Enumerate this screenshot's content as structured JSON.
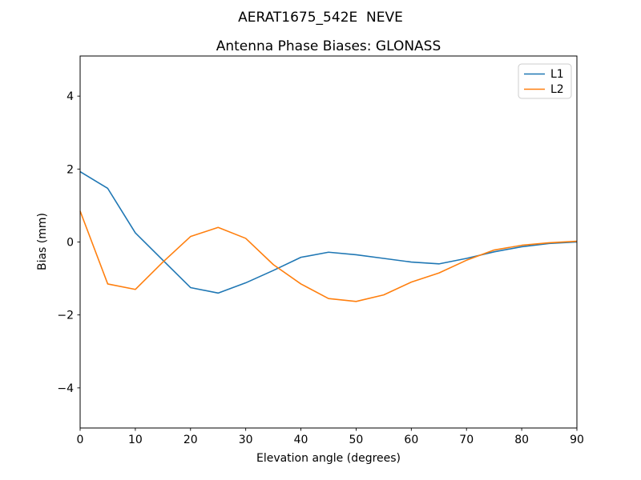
{
  "chart_data": {
    "type": "line",
    "title": "AERAT1675_542E  NEVE",
    "subtitle": "Antenna Phase Biases: GLONASS",
    "xlabel": "Elevation angle (degrees)",
    "ylabel": "Bias (mm)",
    "x": [
      0,
      5,
      10,
      15,
      20,
      25,
      30,
      35,
      40,
      45,
      50,
      55,
      60,
      65,
      70,
      75,
      80,
      85,
      90
    ],
    "series": [
      {
        "name": "L1",
        "color": "#1f77b4",
        "values": [
          1.93,
          1.47,
          0.25,
          -0.5,
          -1.25,
          -1.4,
          -1.12,
          -0.78,
          -0.42,
          -0.28,
          -0.35,
          -0.45,
          -0.55,
          -0.6,
          -0.45,
          -0.27,
          -0.13,
          -0.04,
          0.0
        ]
      },
      {
        "name": "L2",
        "color": "#ff7f0e",
        "values": [
          0.85,
          -1.15,
          -1.3,
          -0.55,
          0.15,
          0.4,
          0.1,
          -0.62,
          -1.15,
          -1.55,
          -1.63,
          -1.45,
          -1.1,
          -0.85,
          -0.5,
          -0.22,
          -0.09,
          -0.02,
          0.02
        ]
      }
    ],
    "xlim": [
      0,
      90
    ],
    "ylim": [
      -5.1,
      5.1
    ],
    "xticks": [
      0,
      10,
      20,
      30,
      40,
      50,
      60,
      70,
      80,
      90
    ],
    "xtick_labels": [
      "0",
      "10",
      "20",
      "30",
      "40",
      "50",
      "60",
      "70",
      "80",
      "90"
    ],
    "yticks": [
      -4,
      -2,
      0,
      2,
      4
    ],
    "ytick_labels": [
      "−4",
      "−2",
      "0",
      "2",
      "4"
    ],
    "grid": false,
    "legend_position": "upper right",
    "axis_color": "#000000",
    "legend_edge_color": "#cccccc",
    "background": "#ffffff"
  }
}
